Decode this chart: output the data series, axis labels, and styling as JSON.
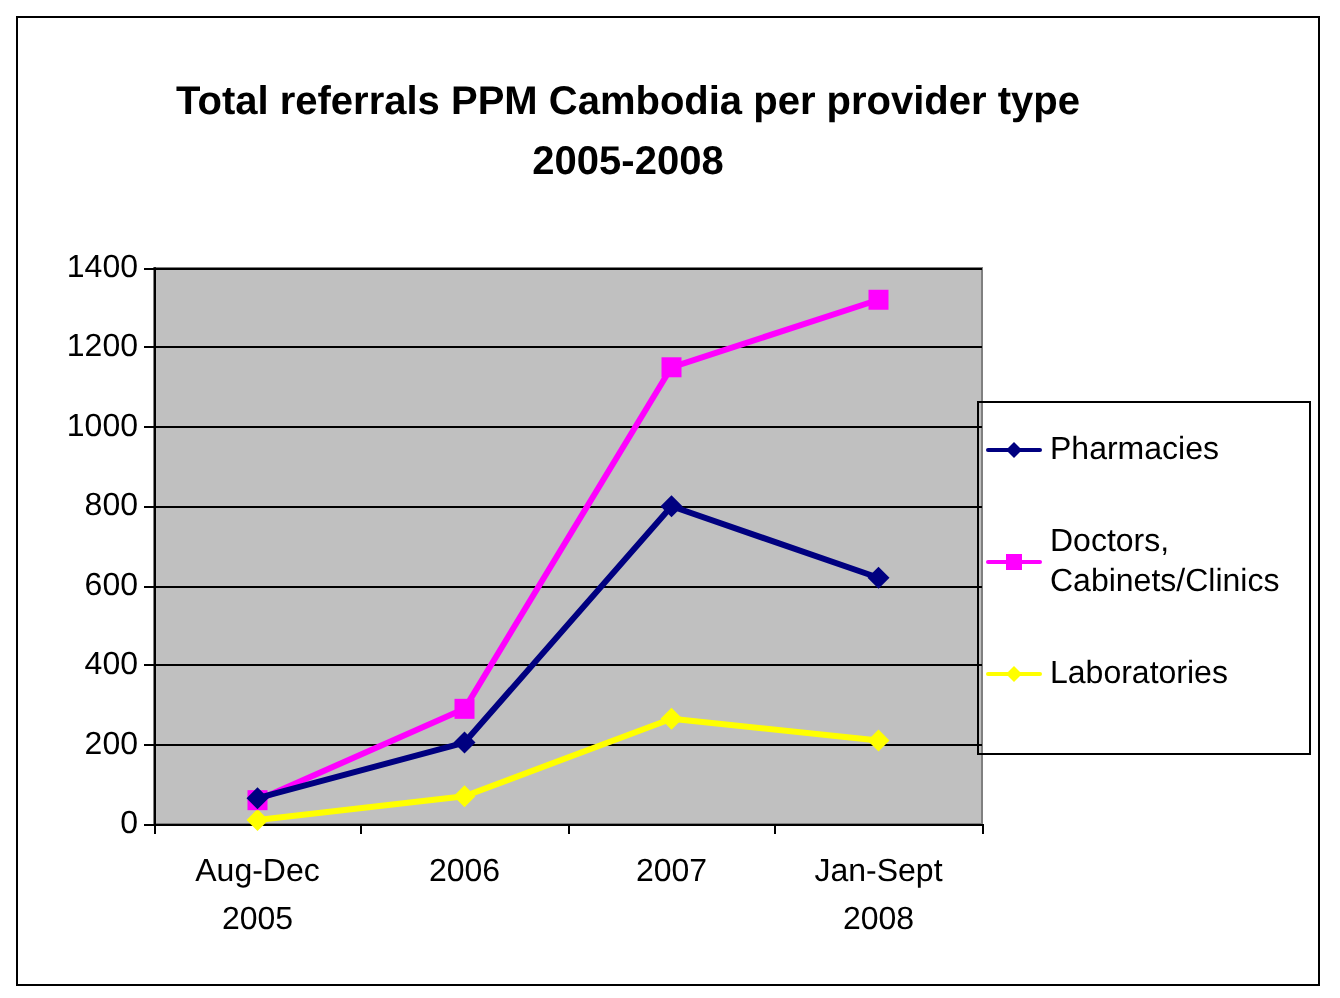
{
  "chart_data": {
    "type": "line",
    "title": "Total referrals PPM Cambodia per provider type\n2005-2008",
    "categories": [
      "Aug-Dec\n2005",
      "2006",
      "2007",
      "Jan-Sept\n2008"
    ],
    "series": [
      {
        "name": "Pharmacies",
        "color": "#000080",
        "marker": "diamond",
        "values": [
          65,
          205,
          800,
          620
        ]
      },
      {
        "name": "Doctors, Cabinets/Clinics",
        "color": "#ff00ff",
        "marker": "square",
        "values": [
          60,
          290,
          1150,
          1320
        ]
      },
      {
        "name": "Laboratories",
        "color": "#ffff00",
        "marker": "diamond",
        "values": [
          10,
          70,
          265,
          210
        ]
      }
    ],
    "ylim": [
      0,
      1400
    ],
    "yticks": [
      0,
      200,
      400,
      600,
      800,
      1000,
      1200,
      1400
    ],
    "grid": "y",
    "legend": "right",
    "line_style": "solid"
  }
}
